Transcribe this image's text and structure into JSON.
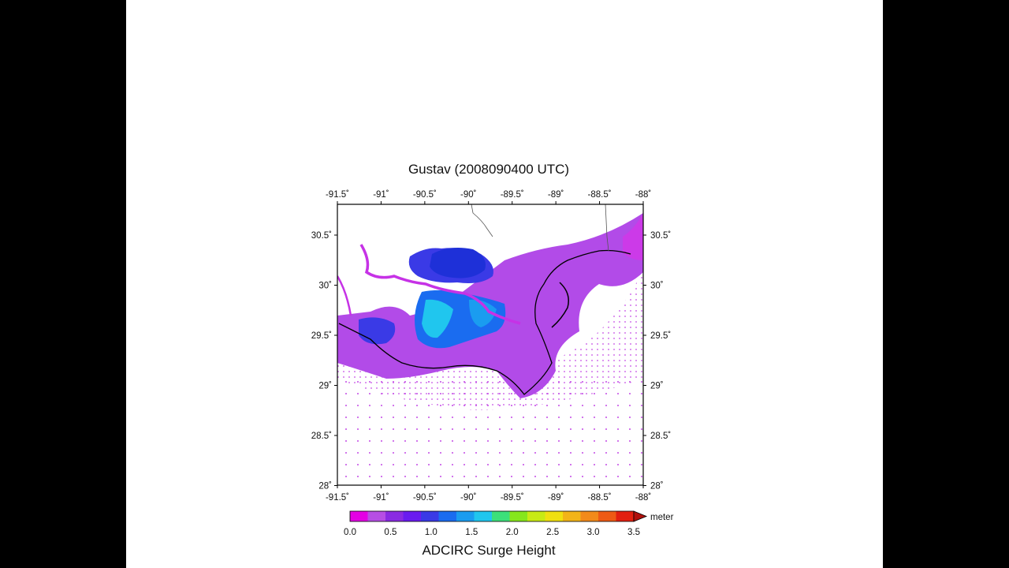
{
  "title": "Gustav (2008090400 UTC)",
  "lon_ticks": [
    "-91.5˚",
    "-91˚",
    "-90.5˚",
    "-90˚",
    "-89.5˚",
    "-89˚",
    "-88.5˚",
    "-88˚"
  ],
  "lat_ticks": [
    "30.5˚",
    "30˚",
    "29.5˚",
    "29˚",
    "28.5˚",
    "28˚"
  ],
  "colorbar": {
    "title": "ADCIRC Surge Height",
    "unit": "meter",
    "labels": [
      "0.0",
      "0.5",
      "1.0",
      "1.5",
      "2.0",
      "2.5",
      "3.0",
      "3.5"
    ],
    "colors": [
      "#e400e4",
      "#b64ee4",
      "#8a2be2",
      "#6a1cf0",
      "#3a3ae6",
      "#1a6cf0",
      "#1a9cf0",
      "#20c6ee",
      "#3ce07a",
      "#86e61c",
      "#c8ea14",
      "#f0e010",
      "#f2b418",
      "#f28a1a",
      "#ee5a14",
      "#e22010"
    ],
    "over_color": "#b0100c"
  }
}
